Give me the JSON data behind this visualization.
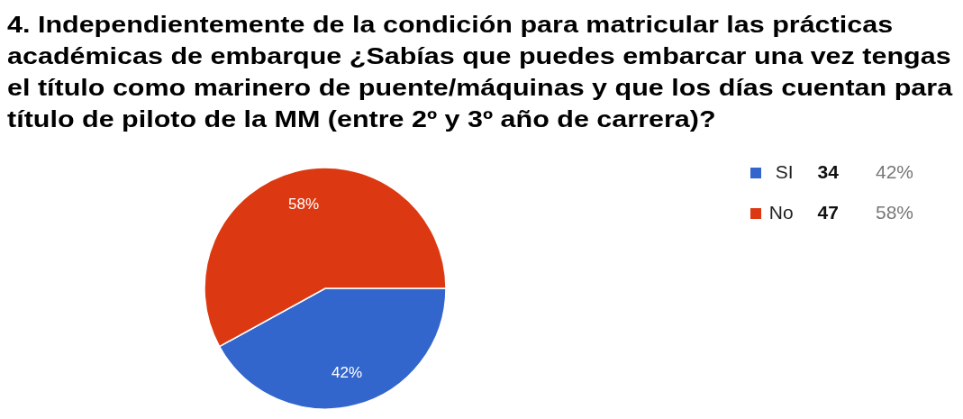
{
  "chart_data": {
    "type": "pie",
    "title": "4. Independientemente de la condición para matricular las prácticas académicas de embarque ¿Sabías que puedes embarcar una vez tengas el título como marinero de puente/máquinas y que los días cuentan para título de piloto de la MM (entre 2º y 3º año de carrera)?",
    "categories": [
      "SI",
      "No"
    ],
    "values": [
      42,
      58
    ],
    "value_labels": [
      "42%",
      "58%"
    ],
    "annotations": [
      "34",
      "47"
    ],
    "colors": [
      "#3366cc",
      "#dc3912"
    ],
    "legend": "top right"
  }
}
